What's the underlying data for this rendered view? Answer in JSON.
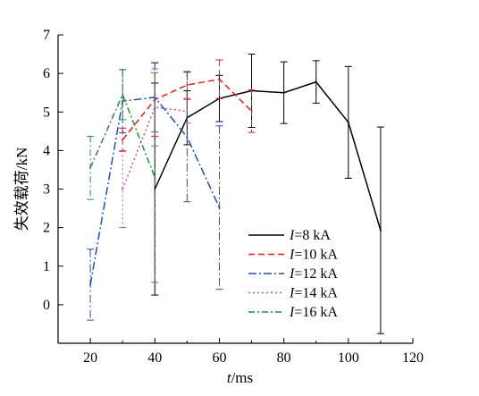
{
  "chart_data": {
    "type": "line",
    "xlabel_var": "t",
    "xlabel_unit": "/ms",
    "ylabel": "失效载荷/kN",
    "xlim": [
      10,
      120
    ],
    "ylim": [
      -1,
      7
    ],
    "xticks": [
      20,
      40,
      60,
      80,
      100,
      120
    ],
    "yticks": [
      0,
      1,
      2,
      3,
      4,
      5,
      6,
      7
    ],
    "legend_position": "lower-right",
    "series": [
      {
        "name": "I=8 kA",
        "label_var": "I",
        "label_rest": "=8 kA",
        "color": "#000000",
        "dash": "",
        "x": [
          40,
          50,
          60,
          70,
          80,
          90,
          100,
          110
        ],
        "y": [
          3.0,
          4.85,
          5.35,
          5.55,
          5.5,
          5.78,
          4.73,
          1.93
        ],
        "err": [
          2.75,
          0.7,
          0.6,
          0.95,
          0.8,
          0.55,
          1.45,
          2.68
        ]
      },
      {
        "name": "I=10 kA",
        "label_var": "I",
        "label_rest": "=10 kA",
        "color": "#e41a1c",
        "dash": "7,4",
        "x": [
          30,
          40,
          50,
          60,
          70
        ],
        "y": [
          4.28,
          5.32,
          5.7,
          5.85,
          5.02
        ],
        "err": [
          0.3,
          0.95,
          0.35,
          0.5,
          0.55
        ]
      },
      {
        "name": "I=12 kA",
        "label_var": "I",
        "label_rest": "=12 kA",
        "color": "#2050a8",
        "dash": "9,3,2,3",
        "x": [
          20,
          30,
          40,
          50,
          60
        ],
        "y": [
          0.52,
          5.28,
          5.38,
          4.35,
          2.52
        ],
        "err": [
          0.92,
          0.82,
          0.9,
          1.68,
          2.12
        ]
      },
      {
        "name": "I=14 kA",
        "label_var": "I",
        "label_rest": "=14 kA",
        "color": "#b04fc0",
        "dash": "2,3",
        "x": [
          30,
          40,
          50
        ],
        "y": [
          3.0,
          5.12,
          5.02
        ],
        "err": [
          1.0,
          1.0,
          0.3
        ]
      },
      {
        "name": "I=16 kA",
        "label_var": "I",
        "label_rest": "=16 kA",
        "color": "#2a8a3a",
        "dash": "7,3,2,3",
        "x": [
          20,
          30,
          40
        ],
        "y": [
          3.55,
          5.45,
          3.3
        ],
        "err": [
          0.82,
          0.65,
          2.72
        ]
      }
    ]
  }
}
